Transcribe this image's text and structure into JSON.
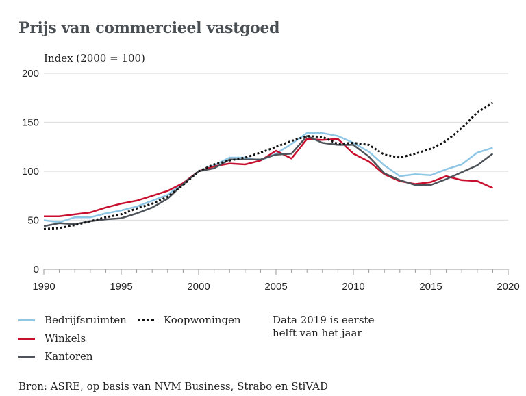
{
  "chart_data": {
    "type": "line",
    "title": "Prijs van commercieel vastgoed",
    "ylabel": "Index (2000 = 100)",
    "xlabel": "",
    "xlim": [
      1990,
      2020
    ],
    "ylim": [
      0,
      200
    ],
    "x_ticks": [
      1990,
      1995,
      2000,
      2005,
      2010,
      2015,
      2020
    ],
    "y_ticks": [
      0,
      50,
      100,
      150,
      200
    ],
    "grid": "horizontal",
    "x": [
      1990,
      1991,
      1992,
      1993,
      1994,
      1995,
      1996,
      1997,
      1998,
      1999,
      2000,
      2001,
      2002,
      2003,
      2004,
      2005,
      2006,
      2007,
      2008,
      2009,
      2010,
      2011,
      2012,
      2013,
      2014,
      2015,
      2016,
      2017,
      2018,
      2019
    ],
    "series": [
      {
        "name": "Bedrijfsruimten",
        "color": "#8ec6e6",
        "style": "solid",
        "values": [
          50,
          48,
          53,
          53,
          57,
          60,
          64,
          70,
          76,
          88,
          100,
          106,
          114,
          114,
          111,
          118,
          128,
          139,
          139,
          136,
          129,
          120,
          106,
          95,
          97,
          96,
          102,
          107,
          119,
          124
        ]
      },
      {
        "name": "Winkels",
        "color": "#c8102e",
        "style": "solid",
        "values": [
          54,
          54,
          56,
          58,
          63,
          67,
          70,
          75,
          80,
          88,
          100,
          105,
          108,
          107,
          111,
          121,
          113,
          133,
          132,
          133,
          118,
          110,
          97,
          90,
          87,
          89,
          95,
          91,
          90,
          83
        ]
      },
      {
        "name": "Kantoren",
        "color": "#4d5359",
        "style": "solid",
        "values": [
          44,
          47,
          46,
          49,
          51,
          52,
          57,
          63,
          72,
          87,
          100,
          103,
          112,
          112,
          112,
          117,
          118,
          136,
          129,
          127,
          127,
          115,
          98,
          91,
          86,
          86,
          92,
          99,
          106,
          118
        ]
      },
      {
        "name": "Koopwoningen",
        "color": "#111111",
        "style": "dotted",
        "values": [
          41,
          42,
          45,
          49,
          53,
          56,
          62,
          67,
          74,
          86,
          100,
          107,
          111,
          114,
          119,
          125,
          131,
          136,
          135,
          128,
          129,
          127,
          117,
          114,
          118,
          123,
          131,
          144,
          160,
          170
        ]
      }
    ],
    "legend_position": "bottom-left",
    "annotation": "Data 2019 is eerste helft van het jaar",
    "source": "Bron: ASRE, op basis van NVM Business, Strabo en StiVAD"
  },
  "legend": {
    "items": [
      {
        "label": "Bedrijfsruimten"
      },
      {
        "label": "Koopwoningen"
      },
      {
        "label": "Winkels"
      },
      {
        "label": "Kantoren"
      }
    ]
  }
}
